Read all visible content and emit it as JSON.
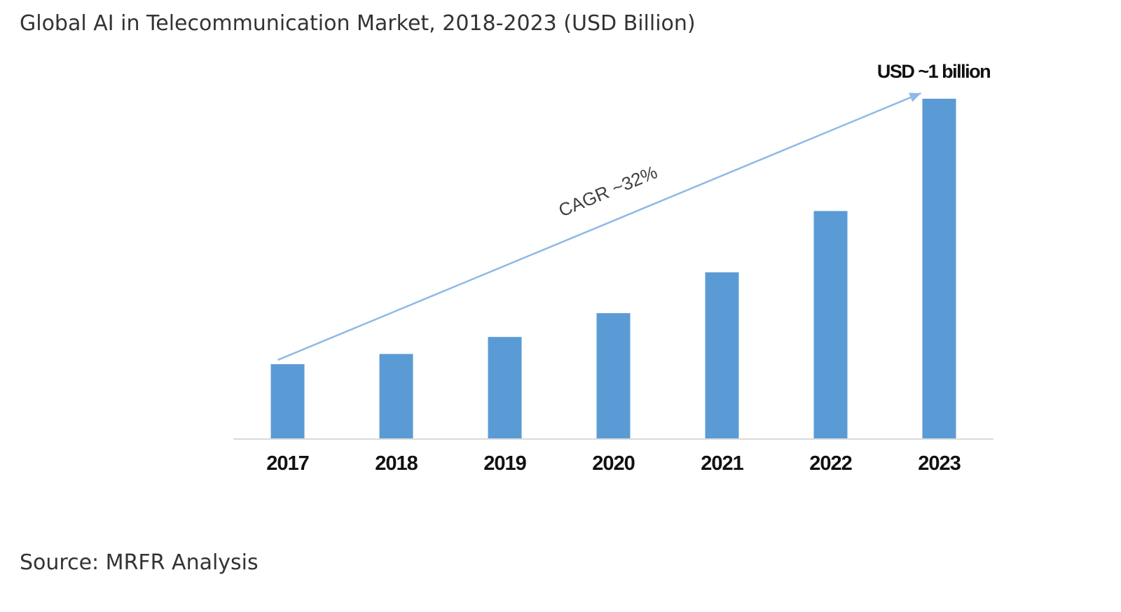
{
  "title": "Global AI in Telecommunication Market, 2018-2023 (USD Billion)",
  "source": "Source: MRFR Analysis",
  "chart_data": {
    "type": "bar",
    "categories": [
      "2017",
      "2018",
      "2019",
      "2020",
      "2021",
      "2022",
      "2023"
    ],
    "values": [
      0.22,
      0.25,
      0.3,
      0.37,
      0.49,
      0.67,
      1.0
    ],
    "value_unit": "USD Billion",
    "ylim": [
      0,
      1.0
    ],
    "axis_lines": {
      "x": true,
      "y": false
    },
    "grid": false,
    "legend": false,
    "bar_color": "#5b9bd5",
    "annotations": {
      "trend_arrow": {
        "from": "2017",
        "to": "2023",
        "label": "CAGR ~32%",
        "color": "#8fb9e6"
      },
      "end_label": "USD ~1 billion"
    }
  }
}
